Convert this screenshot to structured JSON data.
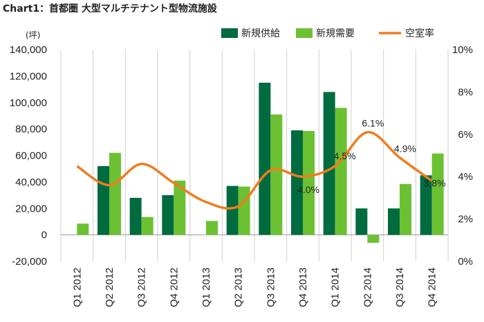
{
  "chart_data": {
    "type": "bar",
    "title": "Chart1：首都圏 大型マルチテナント型物流施設",
    "ylabel": "(坪)",
    "categories": [
      "Q1 2012",
      "Q2 2012",
      "Q3 2012",
      "Q4 2012",
      "Q1 2013",
      "Q2 2013",
      "Q3 2013",
      "Q4 2013",
      "Q1 2014",
      "Q2 2014",
      "Q3 2014",
      "Q4 2014"
    ],
    "y_ticks": [
      "140,000",
      "120,000",
      "100,000",
      "80,000",
      "60,000",
      "40,000",
      "20,000",
      "0",
      "-20,000"
    ],
    "y2_ticks": [
      "10%",
      "8%",
      "6%",
      "4%",
      "2%",
      "0%"
    ],
    "ylim": [
      -20000,
      140000
    ],
    "y2lim": [
      0,
      10
    ],
    "grid": "vertical",
    "legend_position": "top-right",
    "series": [
      {
        "name": "新規供給",
        "type": "bar",
        "axis": "left",
        "color": "#006b3f",
        "values": [
          0,
          52000,
          28000,
          30000,
          0,
          37000,
          115000,
          79000,
          108000,
          20000,
          20000,
          45000
        ]
      },
      {
        "name": "新規需要",
        "type": "bar",
        "axis": "left",
        "color": "#6cc133",
        "values": [
          8500,
          62000,
          13500,
          41000,
          10500,
          36500,
          91000,
          78500,
          96000,
          -6000,
          38500,
          61500
        ]
      },
      {
        "name": "空室率",
        "type": "line",
        "axis": "right",
        "color": "#f07c1e",
        "values": [
          4.5,
          3.6,
          4.6,
          3.7,
          2.8,
          2.6,
          4.3,
          4.0,
          4.5,
          6.1,
          4.9,
          3.8
        ]
      }
    ],
    "data_labels": [
      {
        "index": 7,
        "text": "4.0%"
      },
      {
        "index": 8,
        "text": "4.5%"
      },
      {
        "index": 9,
        "text": "6.1%"
      },
      {
        "index": 10,
        "text": "4.9%"
      },
      {
        "index": 11,
        "text": "3.8%"
      }
    ]
  }
}
